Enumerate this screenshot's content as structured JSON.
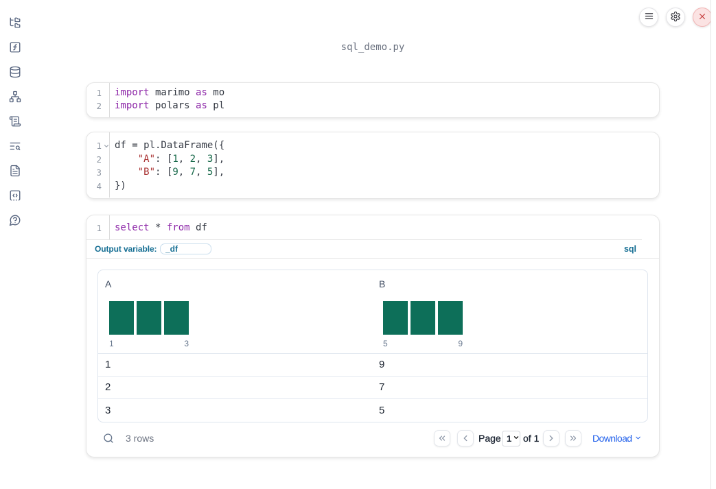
{
  "filename": "sql_demo.py",
  "sidebar": {
    "items": [
      {
        "icon": "folder-tree"
      },
      {
        "icon": "function-square"
      },
      {
        "icon": "database"
      },
      {
        "icon": "network"
      },
      {
        "icon": "scroll-text"
      },
      {
        "icon": "text-search"
      },
      {
        "icon": "file-text"
      },
      {
        "icon": "square-dashed-bottom-code"
      },
      {
        "icon": "message-circle-question"
      }
    ]
  },
  "toolbar": {
    "buttons": [
      {
        "icon": "menu"
      },
      {
        "icon": "settings-gear"
      },
      {
        "icon": "shutdown-x"
      }
    ]
  },
  "cells": [
    {
      "lines": [
        [
          {
            "t": "kw",
            "v": "import"
          },
          {
            "t": "p",
            "v": " marimo "
          },
          {
            "t": "kw",
            "v": "as"
          },
          {
            "t": "p",
            "v": " mo"
          }
        ],
        [
          {
            "t": "kw",
            "v": "import"
          },
          {
            "t": "p",
            "v": " polars "
          },
          {
            "t": "kw",
            "v": "as"
          },
          {
            "t": "p",
            "v": " pl"
          }
        ]
      ],
      "fold_line": -1
    },
    {
      "lines": [
        [
          {
            "t": "p",
            "v": "df = pl.DataFrame({"
          }
        ],
        [
          {
            "t": "p",
            "v": "    "
          },
          {
            "t": "str",
            "v": "\"A\""
          },
          {
            "t": "p",
            "v": ": ["
          },
          {
            "t": "num",
            "v": "1"
          },
          {
            "t": "p",
            "v": ", "
          },
          {
            "t": "num",
            "v": "2"
          },
          {
            "t": "p",
            "v": ", "
          },
          {
            "t": "num",
            "v": "3"
          },
          {
            "t": "p",
            "v": "],"
          }
        ],
        [
          {
            "t": "p",
            "v": "    "
          },
          {
            "t": "str",
            "v": "\"B\""
          },
          {
            "t": "p",
            "v": ": ["
          },
          {
            "t": "num",
            "v": "9"
          },
          {
            "t": "p",
            "v": ", "
          },
          {
            "t": "num",
            "v": "7"
          },
          {
            "t": "p",
            "v": ", "
          },
          {
            "t": "num",
            "v": "5"
          },
          {
            "t": "p",
            "v": "],"
          }
        ],
        [
          {
            "t": "p",
            "v": "})"
          }
        ]
      ],
      "fold_line": 0
    },
    {
      "lines": [
        [
          {
            "t": "kw",
            "v": "select"
          },
          {
            "t": "p",
            "v": " * "
          },
          {
            "t": "kw",
            "v": "from"
          },
          {
            "t": "p",
            "v": " df"
          }
        ]
      ],
      "fold_line": -1
    }
  ],
  "sql_cell": {
    "output_variable_label": "Output variable:",
    "output_variable_value": "_df",
    "language_badge": "sql"
  },
  "table": {
    "columns": [
      {
        "name": "A",
        "hist": {
          "bars": [
            1,
            1,
            1
          ],
          "min_label": "1",
          "max_label": "3"
        }
      },
      {
        "name": "B",
        "hist": {
          "bars": [
            1,
            1,
            1
          ],
          "min_label": "5",
          "max_label": "9"
        }
      }
    ],
    "rows": [
      [
        "1",
        "9"
      ],
      [
        "2",
        "7"
      ],
      [
        "3",
        "5"
      ]
    ],
    "footer": {
      "row_count": "3 rows",
      "page_label": "Page",
      "page_value": "1",
      "of_label": "of 1",
      "download_label": "Download"
    }
  },
  "colors": {
    "keyword": "#8d27a8",
    "string": "#a93232",
    "number": "#17694a",
    "histogram_bar": "#0d6f59",
    "accent_teal": "#156e93",
    "download_link": "#2563eb",
    "danger": "#c63c3c"
  }
}
